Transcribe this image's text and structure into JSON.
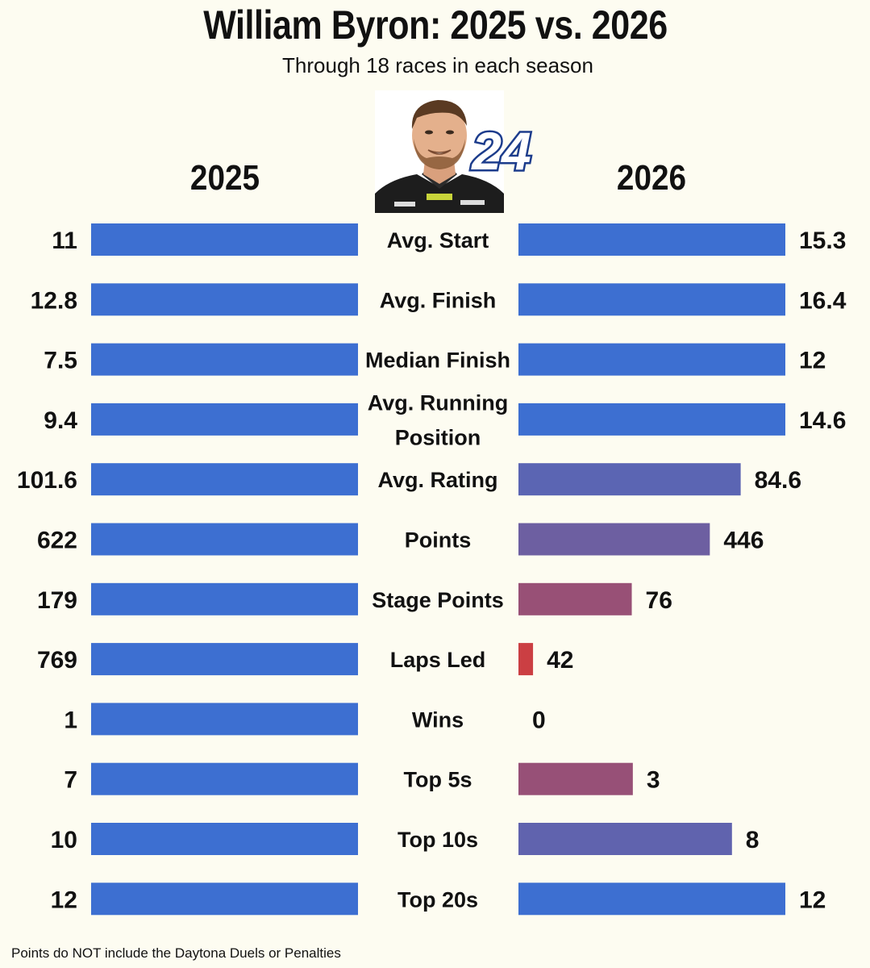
{
  "title": "William Byron: 2025 vs. 2026",
  "subtitle": "Through 18 races in each season",
  "footnote": "Points do NOT include the Daytona Duels or Penalties",
  "car_number": "24",
  "colors": {
    "background": "#fdfcf1",
    "left_bar": "#3d6fd1",
    "better": "#3d6fd1",
    "mid": "#7a62ad",
    "worse": "#d23c3c"
  },
  "chart_data": {
    "type": "bar",
    "series": [
      {
        "name": "2025",
        "values": [
          11,
          12.8,
          7.5,
          9.4,
          101.6,
          622,
          179,
          769,
          1,
          7,
          10,
          12
        ]
      },
      {
        "name": "2026",
        "values": [
          15.3,
          16.4,
          12,
          14.6,
          84.6,
          446,
          76,
          42,
          0,
          3,
          8,
          12
        ]
      }
    ],
    "categories": [
      "Avg. Start",
      "Avg. Finish",
      "Median Finish",
      "Avg. Running\nPosition",
      "Avg. Rating",
      "Points",
      "Stage Points",
      "Laps Led",
      "Wins",
      "Top 5s",
      "Top 10s",
      "Top 20s"
    ],
    "value_labels": {
      "2025": [
        "11",
        "12.8",
        "7.5",
        "9.4",
        "101.6",
        "622",
        "179",
        "769",
        "1",
        "7",
        "10",
        "12"
      ],
      "2026": [
        "15.3",
        "16.4",
        "12",
        "14.6",
        "84.6",
        "446",
        "76",
        "42",
        "0",
        "3",
        "8",
        "12"
      ]
    },
    "legend": "column headers"
  }
}
